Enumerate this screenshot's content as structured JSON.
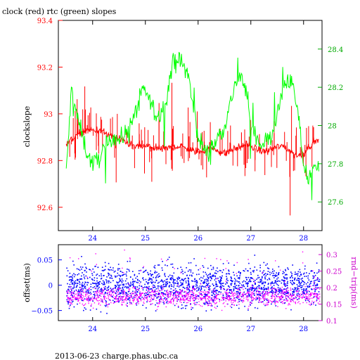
{
  "chart_data": [
    {
      "type": "line",
      "title": "clock (red) rtc (green) slopes",
      "ylabel": "clockslope",
      "xlim": [
        23.35,
        28.35
      ],
      "ylim": [
        92.5,
        93.4
      ],
      "y2lim": [
        27.45,
        28.55
      ],
      "x_ticks": [
        24,
        25,
        26,
        27,
        28
      ],
      "x_tick_labels": [
        "24",
        "25",
        "26",
        "27",
        "28"
      ],
      "y_ticks": [
        92.6,
        92.8,
        93.0,
        93.2,
        93.4
      ],
      "y_tick_labels": [
        "92.6",
        "92.8",
        "93",
        "93.2",
        "93.4"
      ],
      "y2_ticks": [
        27.6,
        27.8,
        28.0,
        28.2,
        28.4
      ],
      "y2_tick_labels": [
        "27.6",
        "27.8",
        "28",
        "28.2",
        "28.4"
      ],
      "grid": false,
      "series": [
        {
          "name": "clock",
          "color": "#ff0000",
          "axis": "left",
          "x": [
            23.5,
            23.6,
            23.7,
            23.8,
            23.9,
            24.0,
            24.1,
            24.2,
            24.3,
            24.4,
            24.5,
            24.6,
            24.7,
            24.8,
            24.9,
            25.0,
            25.1,
            25.2,
            25.3,
            25.4,
            25.5,
            25.6,
            25.7,
            25.8,
            25.9,
            26.0,
            26.1,
            26.2,
            26.3,
            26.4,
            26.5,
            26.6,
            26.7,
            26.8,
            26.9,
            27.0,
            27.1,
            27.2,
            27.3,
            27.4,
            27.5,
            27.6,
            27.7,
            27.8,
            27.9,
            28.0,
            28.1,
            28.2,
            28.3
          ],
          "y": [
            92.87,
            92.89,
            92.91,
            92.92,
            92.93,
            92.93,
            92.93,
            92.92,
            92.91,
            92.9,
            92.89,
            92.88,
            92.87,
            92.86,
            92.86,
            92.86,
            92.86,
            92.85,
            92.85,
            92.85,
            92.86,
            92.86,
            92.86,
            92.85,
            92.84,
            92.84,
            92.84,
            92.85,
            92.85,
            92.84,
            92.83,
            92.84,
            92.85,
            92.86,
            92.87,
            92.86,
            92.85,
            92.84,
            92.84,
            92.85,
            92.86,
            92.86,
            92.85,
            92.83,
            92.82,
            92.83,
            92.86,
            92.88,
            92.89
          ]
        },
        {
          "name": "rtc",
          "color": "#00ff00",
          "axis": "right",
          "x": [
            23.5,
            23.6,
            23.7,
            23.8,
            23.9,
            24.0,
            24.1,
            24.2,
            24.3,
            24.4,
            24.5,
            24.6,
            24.7,
            24.8,
            24.9,
            25.0,
            25.1,
            25.2,
            25.3,
            25.4,
            25.5,
            25.6,
            25.7,
            25.8,
            25.9,
            26.0,
            26.1,
            26.2,
            26.3,
            26.4,
            26.5,
            26.6,
            26.7,
            26.8,
            26.9,
            27.0,
            27.1,
            27.2,
            27.3,
            27.4,
            27.5,
            27.6,
            27.7,
            27.8,
            27.9,
            28.0,
            28.1,
            28.2,
            28.3
          ],
          "y": [
            27.75,
            28.2,
            28.05,
            27.95,
            27.85,
            27.8,
            27.82,
            27.87,
            27.9,
            27.95,
            27.92,
            27.95,
            28.0,
            28.06,
            28.15,
            28.18,
            28.12,
            28.05,
            28.05,
            28.15,
            28.3,
            28.35,
            28.32,
            28.28,
            28.1,
            27.95,
            27.88,
            27.85,
            27.9,
            27.95,
            28.0,
            28.1,
            28.22,
            28.25,
            28.2,
            28.0,
            27.95,
            27.9,
            27.92,
            27.95,
            28.05,
            28.18,
            28.25,
            28.2,
            28.05,
            27.8,
            27.7,
            27.78,
            27.82
          ]
        }
      ]
    },
    {
      "type": "scatter",
      "ylabel": "offset(ms)",
      "y2label": "rnd−trip(ms)",
      "xlim": [
        23.35,
        28.35
      ],
      "ylim": [
        -0.07,
        0.08
      ],
      "y2lim": [
        0.1,
        0.33
      ],
      "x_ticks": [
        24,
        25,
        26,
        27,
        28
      ],
      "x_tick_labels": [
        "24",
        "25",
        "26",
        "27",
        "28"
      ],
      "y_ticks": [
        -0.05,
        0,
        0.05
      ],
      "y_tick_labels": [
        "−0.05",
        "0",
        "0.05"
      ],
      "y2_ticks": [
        0.1,
        0.15,
        0.2,
        0.25,
        0.3
      ],
      "y2_tick_labels": [
        "0.1",
        "0.15",
        "0.2",
        "0.25",
        "0.3"
      ],
      "grid": false,
      "series": [
        {
          "name": "offset",
          "color": "#0000ff",
          "axis": "left",
          "x_range": [
            23.5,
            28.3
          ],
          "center": 0.0,
          "spread": 0.022
        },
        {
          "name": "rnd-trip",
          "color": "#ff00ff",
          "axis": "right",
          "x_range": [
            23.5,
            28.3
          ],
          "center": 0.175,
          "spread": 0.02
        }
      ]
    }
  ],
  "footer": {
    "text": "2013-06-23  charge.phas.ubc.ca"
  }
}
